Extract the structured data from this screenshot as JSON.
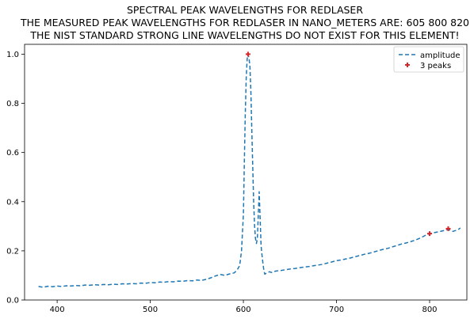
{
  "chart_data": {
    "type": "line",
    "title_lines": [
      "SPECTRAL PEAK WAVELENGTHS FOR REDLASER",
      "THE MEASURED PEAK WAVELENGTHS FOR REDLASER IN NANO_METERS ARE: 605 800 820",
      "THE NIST STANDARD STRONG LINE WAVELENGTHS DO NOT EXIST FOR THIS ELEMENT!"
    ],
    "xlabel": "",
    "ylabel": "",
    "xlim": [
      365,
      840
    ],
    "ylim": [
      0.0,
      1.04
    ],
    "xticks": [
      400,
      500,
      600,
      700,
      800
    ],
    "yticks": [
      0.0,
      0.2,
      0.4,
      0.6,
      0.8,
      1.0
    ],
    "xtick_labels": [
      "400",
      "500",
      "600",
      "700",
      "800"
    ],
    "ytick_labels": [
      "0.0",
      "0.2",
      "0.4",
      "0.6",
      "0.8",
      "1.0"
    ],
    "grid": false,
    "legend_position": "top-right",
    "series": [
      {
        "name": "amplitude",
        "style": "dashed",
        "color": "#1f77b4",
        "x": [
          380,
          385,
          390,
          395,
          400,
          405,
          410,
          415,
          420,
          425,
          430,
          435,
          440,
          445,
          450,
          455,
          460,
          465,
          470,
          475,
          480,
          485,
          490,
          495,
          500,
          505,
          510,
          515,
          520,
          525,
          530,
          535,
          540,
          545,
          550,
          555,
          560,
          565,
          570,
          575,
          580,
          585,
          590,
          593,
          596,
          598,
          600,
          601,
          602,
          603,
          604,
          605,
          606,
          607,
          608,
          609,
          610,
          611,
          612,
          613,
          614,
          615,
          616,
          617,
          618,
          619,
          620,
          621,
          622,
          623,
          625,
          628,
          630,
          635,
          640,
          645,
          650,
          655,
          660,
          665,
          670,
          675,
          680,
          685,
          690,
          695,
          700,
          705,
          710,
          715,
          720,
          725,
          730,
          735,
          740,
          745,
          750,
          755,
          760,
          765,
          770,
          775,
          780,
          785,
          790,
          795,
          800,
          805,
          810,
          815,
          820,
          825,
          830,
          833
        ],
        "values": [
          0.055,
          0.052,
          0.056,
          0.054,
          0.057,
          0.055,
          0.058,
          0.057,
          0.059,
          0.058,
          0.061,
          0.06,
          0.062,
          0.061,
          0.063,
          0.062,
          0.064,
          0.063,
          0.066,
          0.065,
          0.067,
          0.066,
          0.069,
          0.068,
          0.071,
          0.07,
          0.073,
          0.072,
          0.075,
          0.074,
          0.077,
          0.076,
          0.079,
          0.078,
          0.081,
          0.08,
          0.084,
          0.09,
          0.098,
          0.104,
          0.1,
          0.106,
          0.11,
          0.12,
          0.14,
          0.2,
          0.35,
          0.55,
          0.75,
          0.9,
          0.98,
          1.0,
          0.985,
          0.95,
          0.85,
          0.7,
          0.55,
          0.4,
          0.3,
          0.25,
          0.23,
          0.25,
          0.35,
          0.44,
          0.33,
          0.22,
          0.18,
          0.15,
          0.12,
          0.105,
          0.11,
          0.115,
          0.112,
          0.118,
          0.12,
          0.123,
          0.126,
          0.128,
          0.131,
          0.134,
          0.136,
          0.139,
          0.142,
          0.145,
          0.15,
          0.155,
          0.16,
          0.163,
          0.167,
          0.171,
          0.176,
          0.181,
          0.186,
          0.19,
          0.195,
          0.201,
          0.206,
          0.21,
          0.216,
          0.222,
          0.228,
          0.232,
          0.238,
          0.244,
          0.252,
          0.262,
          0.27,
          0.274,
          0.278,
          0.282,
          0.287,
          0.279,
          0.285,
          0.293
        ]
      },
      {
        "name": "3 peaks",
        "style": "markers",
        "color": "#d62728",
        "x": [
          605,
          800,
          820
        ],
        "values": [
          1.0,
          0.27,
          0.29
        ]
      }
    ]
  }
}
